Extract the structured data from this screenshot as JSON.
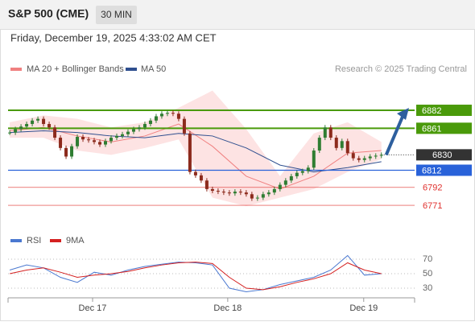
{
  "header": {
    "title": "S&P 500 (CME)",
    "interval": "30 MIN"
  },
  "timestamp": "Friday, December 19, 2025 4:33:02 AM CET",
  "chart_data": {
    "type": "candlestick",
    "copyright": "Research © 2025 Trading Central",
    "up_color": "#2f7d32",
    "down_color": "#8c2a1c",
    "xlim": [
      -0.3,
      71.9
    ],
    "xticks": [
      {
        "value": 14.71,
        "label": "Dec 17"
      },
      {
        "value": 38.71,
        "label": "Dec 18"
      },
      {
        "value": 62.86,
        "label": "Dec 19"
      }
    ],
    "ylim": [
      6757,
      6921.5
    ],
    "x": [
      0,
      1,
      2,
      3,
      4,
      5,
      6,
      7,
      8,
      9,
      10,
      11,
      12,
      13,
      14,
      15,
      16,
      17,
      18,
      19,
      20,
      21,
      22,
      23,
      24,
      25,
      26,
      27,
      28,
      29,
      30,
      31,
      32,
      33,
      34,
      35,
      36,
      37,
      38,
      39,
      40,
      41,
      42,
      43,
      44,
      45,
      46,
      47,
      48,
      49,
      50,
      51,
      52,
      53,
      54,
      55,
      56,
      57,
      58,
      59,
      60,
      61,
      62,
      63,
      64,
      65,
      66
    ],
    "closes": [
      6856,
      6860,
      6863,
      6866,
      6870,
      6872,
      6866,
      6862,
      6850,
      6838,
      6828,
      6840,
      6851,
      6848,
      6847,
      6845,
      6842,
      6846,
      6850,
      6852,
      6854,
      6857,
      6860,
      6862,
      6866,
      6870,
      6875,
      6878,
      6879,
      6878,
      6872,
      6855,
      6810,
      6806,
      6800,
      6790,
      6788,
      6787,
      6786,
      6785,
      6787,
      6786,
      6784,
      6779,
      6780,
      6784,
      6786,
      6790,
      6795,
      6800,
      6805,
      6809,
      6811,
      6815,
      6835,
      6850,
      6862,
      6850,
      6838,
      6846,
      6832,
      6826,
      6824,
      6826,
      6828,
      6829,
      6830
    ],
    "overlays": {
      "x": [
        0,
        6,
        12,
        18,
        24,
        30,
        36,
        42,
        48,
        54,
        60,
        66
      ],
      "bollinger": {
        "name": "MA 20 + Bollinger Bands",
        "color": "#f08080",
        "fill": "#fde3e3",
        "ma": [
          6858,
          6862,
          6852,
          6845,
          6852,
          6866,
          6840,
          6805,
          6790,
          6805,
          6832,
          6835
        ],
        "upper": [
          6868,
          6876,
          6872,
          6862,
          6868,
          6885,
          6905,
          6860,
          6805,
          6855,
          6868,
          6845
        ],
        "lower": [
          6850,
          6850,
          6835,
          6830,
          6838,
          6848,
          6780,
          6770,
          6780,
          6790,
          6810,
          6825
        ]
      },
      "ma50": {
        "name": "MA 50",
        "color": "#2f4f8f",
        "values": [
          6856,
          6858,
          6856,
          6852,
          6850,
          6855,
          6852,
          6838,
          6818,
          6810,
          6815,
          6822
        ]
      }
    },
    "levels": [
      {
        "value": 6882,
        "color": "#4a9a0a",
        "style": "box"
      },
      {
        "value": 6861,
        "color": "#4a9a0a",
        "style": "box"
      },
      {
        "value": 6830,
        "color": "#333333",
        "style": "dotted"
      },
      {
        "value": 6812,
        "color": "#2962d9",
        "style": "box"
      },
      {
        "value": 6792,
        "color": "#e0312e",
        "style": "text"
      },
      {
        "value": 6771,
        "color": "#e0312e",
        "style": "text"
      }
    ],
    "target": 6882,
    "rsi": {
      "ylim": [
        16.7,
        83.3
      ],
      "yticks": [
        30,
        50,
        70
      ],
      "x": [
        0,
        3,
        6,
        9,
        12,
        15,
        18,
        21,
        24,
        27,
        30,
        33,
        36,
        39,
        42,
        45,
        48,
        51,
        54,
        57,
        60,
        63,
        66
      ],
      "series": [
        {
          "name": "RSI",
          "color": "#4a78d0",
          "values": [
            55,
            62,
            58,
            45,
            38,
            52,
            48,
            55,
            60,
            63,
            66,
            65,
            62,
            30,
            25,
            28,
            35,
            40,
            45,
            55,
            75,
            48,
            50
          ]
        },
        {
          "name": "9MA",
          "color": "#d42020",
          "values": [
            50,
            55,
            58,
            52,
            45,
            48,
            50,
            53,
            58,
            62,
            65,
            66,
            64,
            45,
            30,
            28,
            32,
            38,
            43,
            50,
            65,
            55,
            50
          ]
        }
      ]
    }
  }
}
